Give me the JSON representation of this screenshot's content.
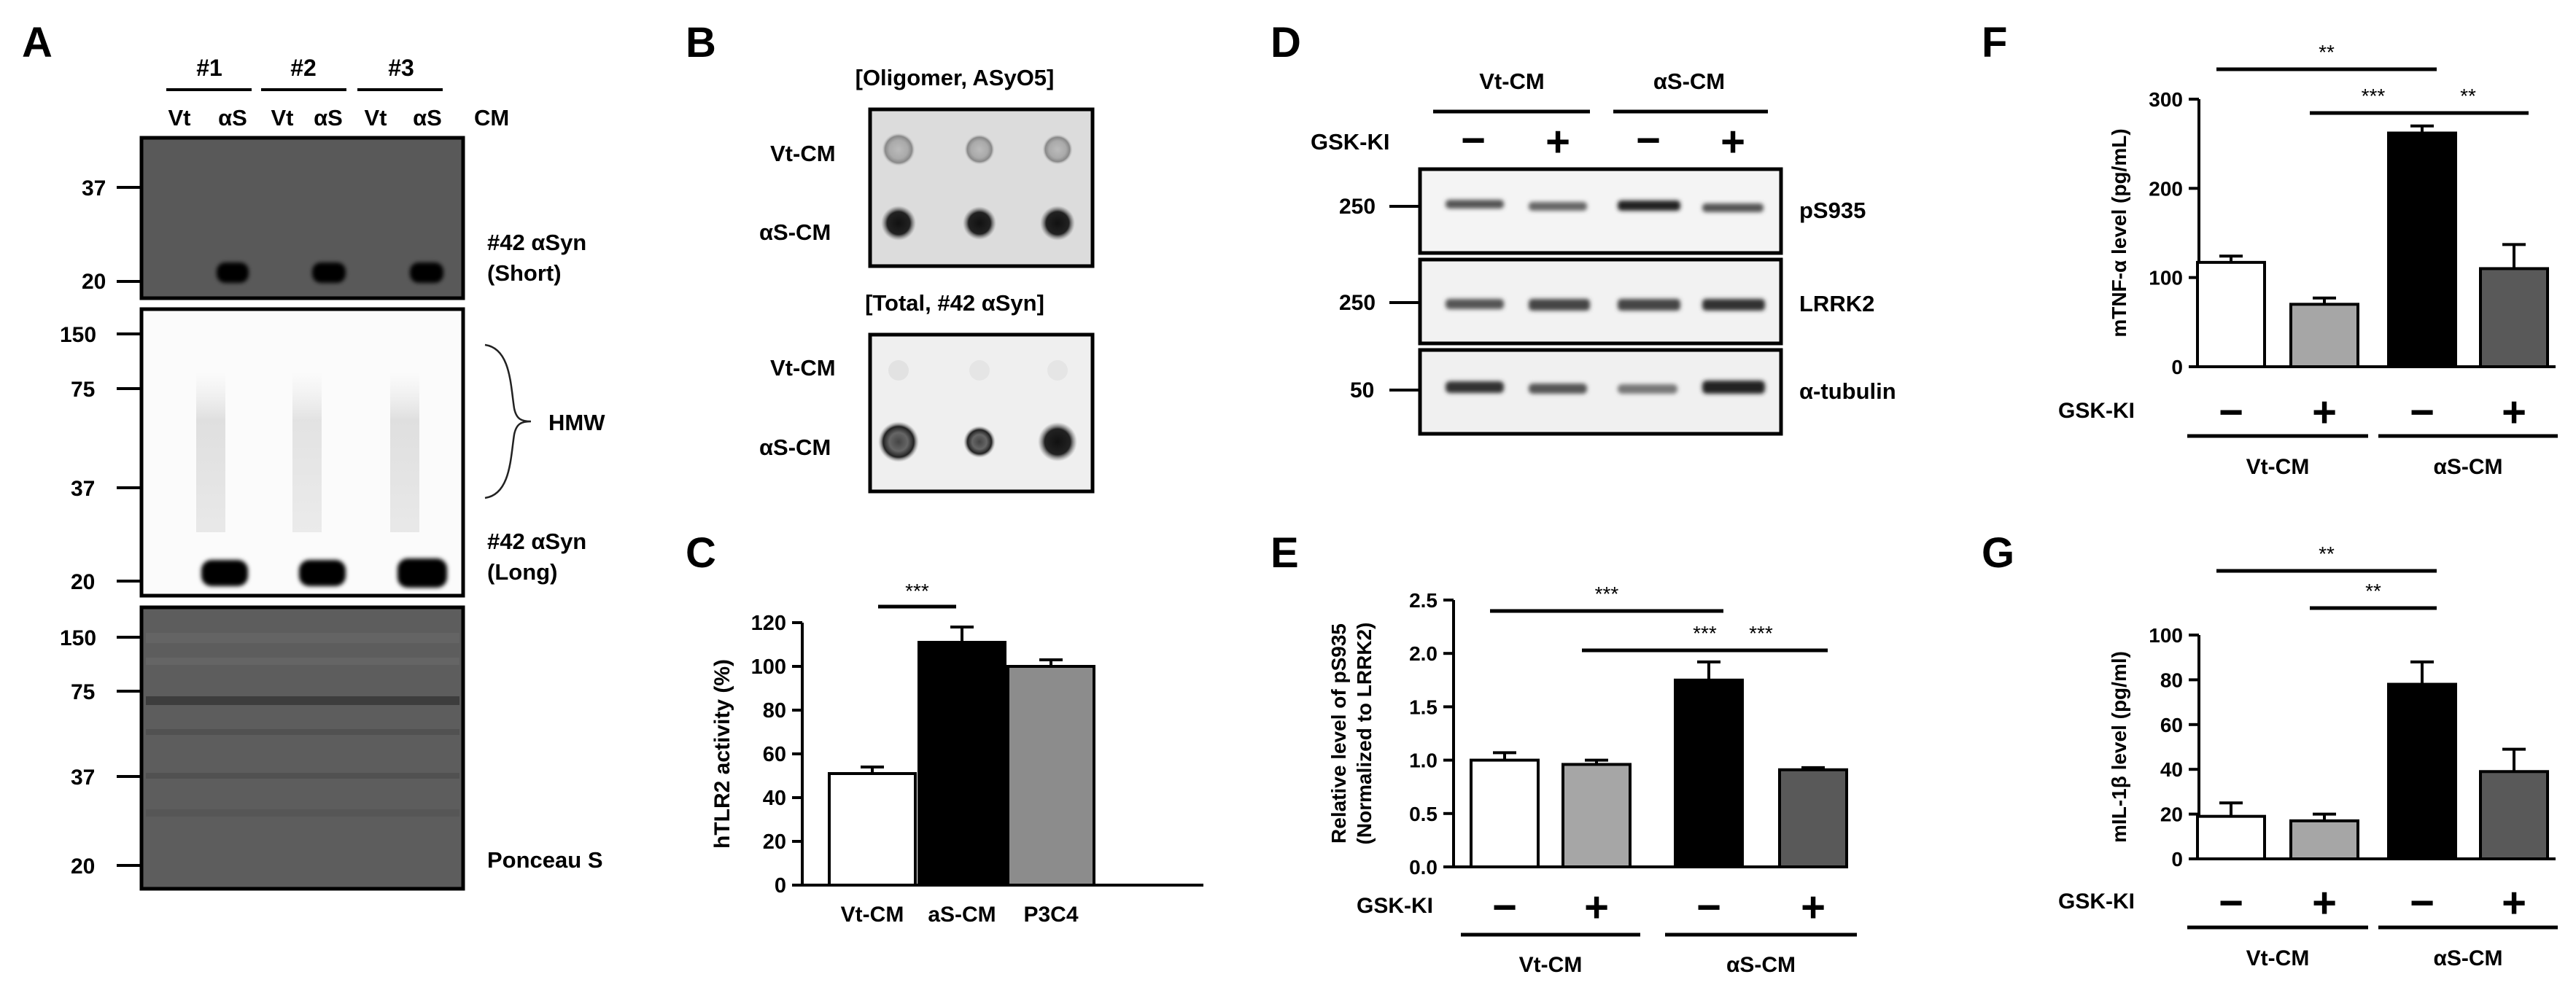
{
  "figure": {
    "panel_a": {
      "letter": "A",
      "samples": [
        "#1",
        "#2",
        "#3"
      ],
      "lane_labels": [
        "Vt",
        "αS",
        "Vt",
        "αS",
        "Vt",
        "αS"
      ],
      "cm_label": "CM",
      "short_mw": [
        "37",
        "20"
      ],
      "long_mw": [
        "150",
        "75",
        "37",
        "20"
      ],
      "ponceau_mw": [
        "150",
        "75",
        "37",
        "20"
      ],
      "short_label": [
        "#42 αSyn",
        "(Short)"
      ],
      "hmw_label": "HMW",
      "long_label": [
        "#42 αSyn",
        "(Long)"
      ],
      "ponceau_label": "Ponceau S"
    },
    "panel_b": {
      "letter": "B",
      "oligomer_title": "[Oligomer, ASyO5]",
      "total_title": "[Total, #42 αSyn]",
      "rows": [
        "Vt-CM",
        "αS-CM"
      ]
    },
    "panel_d": {
      "letter": "D",
      "groups": [
        "Vt-CM",
        "αS-CM"
      ],
      "treatment": "GSK-KI",
      "signs": [
        "−",
        "+",
        "−",
        "+"
      ],
      "blots": [
        {
          "mw": "250",
          "label": "pS935"
        },
        {
          "mw": "250",
          "label": "LRRK2"
        },
        {
          "mw": "50",
          "label": "α-tubulin"
        }
      ]
    }
  },
  "chart_data": [
    {
      "panel": "C",
      "type": "bar",
      "categories": [
        "Vt-CM",
        "aS-CM",
        "P3C4"
      ],
      "values": [
        51,
        111,
        100
      ],
      "errors": [
        3,
        7,
        3
      ],
      "colors": [
        "#ffffff",
        "#000000",
        "#8c8c8c"
      ],
      "ylabel": "hTLR2 activity (%)",
      "ylim": [
        0,
        120
      ],
      "yticks": [
        "0",
        "20",
        "40",
        "60",
        "80",
        "100",
        "120"
      ],
      "significance": [
        {
          "from": "Vt-CM",
          "to": "aS-CM",
          "label": "***"
        }
      ]
    },
    {
      "panel": "E",
      "type": "bar",
      "treatment_label": "GSK-KI",
      "signs": [
        "−",
        "+",
        "−",
        "+"
      ],
      "groups": [
        "Vt-CM",
        "αS-CM"
      ],
      "values": [
        1.0,
        0.96,
        1.75,
        0.91
      ],
      "errors": [
        0.07,
        0.04,
        0.17,
        0.02
      ],
      "colors": [
        "#ffffff",
        "#a6a6a6",
        "#000000",
        "#595959"
      ],
      "ylabel": [
        "Relative level of pS935",
        "(Normalized to LRRK2)"
      ],
      "ylim": [
        0,
        2.5
      ],
      "yticks": [
        "0.0",
        "0.5",
        "1.0",
        "1.5",
        "2.0",
        "2.5"
      ],
      "significance": [
        {
          "from": 1,
          "to": 3,
          "label": "***"
        },
        {
          "from": 2,
          "to": 4,
          "label": "***"
        },
        {
          "from": 3,
          "to": 4,
          "label": "***"
        }
      ]
    },
    {
      "panel": "F",
      "type": "bar",
      "treatment_label": "GSK-KI",
      "signs": [
        "−",
        "+",
        "−",
        "+"
      ],
      "groups": [
        "Vt-CM",
        "αS-CM"
      ],
      "values": [
        117,
        70,
        262,
        110
      ],
      "errors": [
        7,
        7,
        8,
        27
      ],
      "colors": [
        "#ffffff",
        "#a6a6a6",
        "#000000",
        "#595959"
      ],
      "ylabel": "mTNF-α level (pg/mL)",
      "ylim": [
        0,
        300
      ],
      "yticks": [
        "0",
        "100",
        "200",
        "300"
      ],
      "significance": [
        {
          "from": 1,
          "to": 3,
          "label": "**"
        },
        {
          "from": 2,
          "to": 3,
          "label": "***"
        },
        {
          "from": 3,
          "to": 4,
          "label": "**"
        }
      ]
    },
    {
      "panel": "G",
      "type": "bar",
      "treatment_label": "GSK-KI",
      "signs": [
        "−",
        "+",
        "−",
        "+"
      ],
      "groups": [
        "Vt-CM",
        "αS-CM"
      ],
      "values": [
        19,
        17,
        78,
        39
      ],
      "errors": [
        6,
        3,
        10,
        10
      ],
      "colors": [
        "#ffffff",
        "#a6a6a6",
        "#000000",
        "#595959"
      ],
      "ylabel": "mIL-1β level (pg/ml)",
      "ylim": [
        0,
        100
      ],
      "yticks": [
        "0",
        "20",
        "40",
        "60",
        "80",
        "100"
      ],
      "significance": [
        {
          "from": 1,
          "to": 3,
          "label": "**"
        },
        {
          "from": 2,
          "to": 3,
          "label": "**"
        }
      ]
    }
  ]
}
